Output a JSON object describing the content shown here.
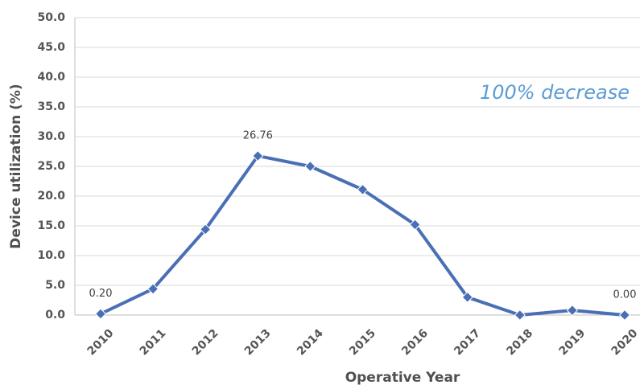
{
  "chart_data": {
    "type": "line",
    "x_label": "Operative Year",
    "y_label": "Device utilization (%)",
    "annotation": "100% decrease",
    "categories": [
      "2010",
      "2011",
      "2012",
      "2013",
      "2014",
      "2015",
      "2016",
      "2017",
      "2018",
      "2019",
      "2020"
    ],
    "values": [
      0.2,
      4.4,
      14.4,
      26.76,
      25.0,
      21.1,
      15.2,
      3.0,
      0.0,
      0.8,
      0.0
    ],
    "value_labels": [
      "0.20",
      null,
      null,
      "26.76",
      null,
      null,
      null,
      null,
      null,
      null,
      "0.00"
    ],
    "color": "#4a6fb5",
    "ylim": [
      0,
      50
    ],
    "yticks": [
      {
        "value": 0,
        "label": "0.0"
      },
      {
        "value": 5,
        "label": "5.0"
      },
      {
        "value": 10,
        "label": "10.0"
      },
      {
        "value": 15,
        "label": "15.0"
      },
      {
        "value": 20,
        "label": "20.0"
      },
      {
        "value": 25,
        "label": "25.0"
      },
      {
        "value": 30,
        "label": "30.0"
      },
      {
        "value": 35,
        "label": "35.0"
      },
      {
        "value": 40,
        "label": "40.0"
      },
      {
        "value": 45,
        "label": "45.0"
      },
      {
        "value": 50,
        "label": "50.0"
      }
    ],
    "grid": true
  }
}
